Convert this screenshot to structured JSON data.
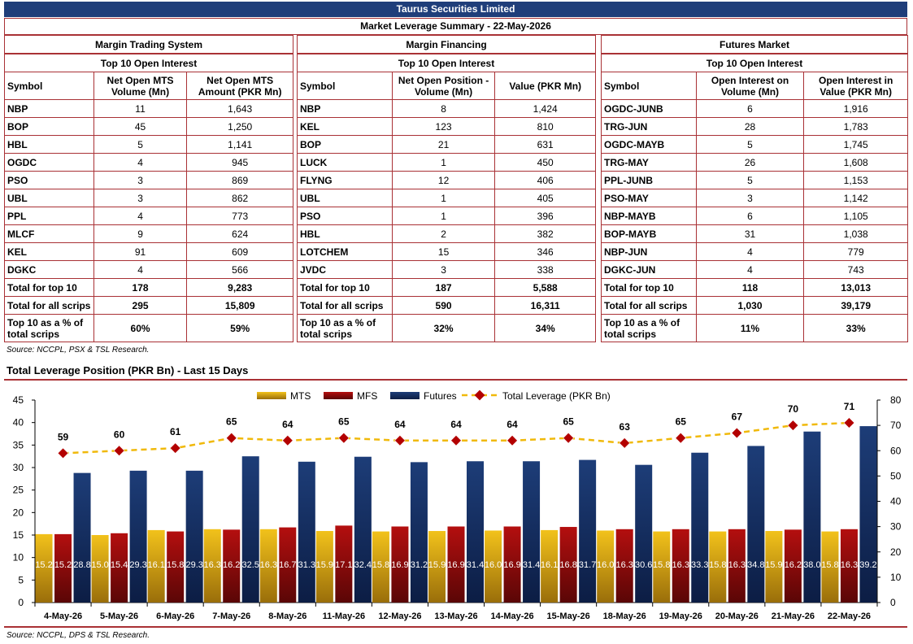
{
  "header": {
    "title": "Taurus Securities Limited",
    "subtitle": "Market Leverage Summary - 22-May-2026"
  },
  "panels": [
    {
      "title": "Margin Trading System",
      "subtitle": "Top 10 Open Interest",
      "columns": [
        "Symbol",
        "Net Open MTS Volume (Mn)",
        "Net Open MTS Amount (PKR Mn)"
      ],
      "rows": [
        [
          "NBP",
          "11",
          "1,643"
        ],
        [
          "BOP",
          "45",
          "1,250"
        ],
        [
          "HBL",
          "5",
          "1,141"
        ],
        [
          "OGDC",
          "4",
          "945"
        ],
        [
          "PSO",
          "3",
          "869"
        ],
        [
          "UBL",
          "3",
          "862"
        ],
        [
          "PPL",
          "4",
          "773"
        ],
        [
          "MLCF",
          "9",
          "624"
        ],
        [
          "KEL",
          "91",
          "609"
        ],
        [
          "DGKC",
          "4",
          "566"
        ]
      ],
      "totals": [
        [
          "Total for top 10",
          "178",
          "9,283"
        ],
        [
          "Total for all scrips",
          "295",
          "15,809"
        ],
        [
          "Top 10 as a % of total scrips",
          "60%",
          "59%"
        ]
      ]
    },
    {
      "title": "Margin Financing",
      "subtitle": "Top 10 Open Interest",
      "columns": [
        "Symbol",
        "Net Open Position - Volume (Mn)",
        "Value (PKR Mn)"
      ],
      "rows": [
        [
          "NBP",
          "8",
          "1,424"
        ],
        [
          "KEL",
          "123",
          "810"
        ],
        [
          "BOP",
          "21",
          "631"
        ],
        [
          "LUCK",
          "1",
          "450"
        ],
        [
          "FLYNG",
          "12",
          "406"
        ],
        [
          "UBL",
          "1",
          "405"
        ],
        [
          "PSO",
          "1",
          "396"
        ],
        [
          "HBL",
          "2",
          "382"
        ],
        [
          "LOTCHEM",
          "15",
          "346"
        ],
        [
          "JVDC",
          "3",
          "338"
        ]
      ],
      "totals": [
        [
          "Total for top 10",
          "187",
          "5,588"
        ],
        [
          "Total for all scrips",
          "590",
          "16,311"
        ],
        [
          "Top 10 as a % of total scrips",
          "32%",
          "34%"
        ]
      ]
    },
    {
      "title": "Futures Market",
      "subtitle": "Top 10 Open Interest",
      "columns": [
        "Symbol",
        "Open Interest on Volume (Mn)",
        "Open Interest in Value (PKR Mn)"
      ],
      "rows": [
        [
          "OGDC-JUNB",
          "6",
          "1,916"
        ],
        [
          "TRG-JUN",
          "28",
          "1,783"
        ],
        [
          "OGDC-MAYB",
          "5",
          "1,745"
        ],
        [
          "TRG-MAY",
          "26",
          "1,608"
        ],
        [
          "PPL-JUNB",
          "5",
          "1,153"
        ],
        [
          "PSO-MAY",
          "3",
          "1,142"
        ],
        [
          "NBP-MAYB",
          "6",
          "1,105"
        ],
        [
          "BOP-MAYB",
          "31",
          "1,038"
        ],
        [
          "NBP-JUN",
          "4",
          "779"
        ],
        [
          "DGKC-JUN",
          "4",
          "743"
        ]
      ],
      "totals": [
        [
          "Total for top 10",
          "118",
          "13,013"
        ],
        [
          "Total for all scrips",
          "1,030",
          "39,179"
        ],
        [
          "Top 10 as a % of total scrips",
          "11%",
          "33%"
        ]
      ]
    }
  ],
  "source_top": "Source: NCCPL, PSX & TSL Research.",
  "chart_title": "Total Leverage Position (PKR Bn) - Last 15 Days",
  "source_bottom": "Source: NCCPL, DPS & TSL Research.",
  "chart_data": {
    "type": "bar",
    "title": "Total Leverage Position (PKR Bn) - Last 15 Days",
    "categories": [
      "4-May-26",
      "5-May-26",
      "6-May-26",
      "7-May-26",
      "8-May-26",
      "11-May-26",
      "12-May-26",
      "13-May-26",
      "14-May-26",
      "15-May-26",
      "18-May-26",
      "19-May-26",
      "20-May-26",
      "21-May-26",
      "22-May-26"
    ],
    "series": [
      {
        "name": "MTS",
        "type": "bar",
        "axis": "left",
        "color": "#e8b800",
        "values": [
          15.2,
          15.0,
          16.1,
          16.3,
          16.3,
          15.9,
          15.8,
          15.9,
          16.0,
          16.1,
          16.0,
          15.8,
          15.8,
          15.9,
          15.8
        ]
      },
      {
        "name": "MFS",
        "type": "bar",
        "axis": "left",
        "color": "#a80f0f",
        "values": [
          15.2,
          15.4,
          15.8,
          16.2,
          16.7,
          17.1,
          16.9,
          16.9,
          16.9,
          16.8,
          16.3,
          16.3,
          16.3,
          16.2,
          16.3
        ]
      },
      {
        "name": "Futures",
        "type": "bar",
        "axis": "left",
        "color": "#13295b",
        "values": [
          28.8,
          29.3,
          29.3,
          32.5,
          31.3,
          32.4,
          31.2,
          31.4,
          31.4,
          31.7,
          30.6,
          33.3,
          34.8,
          38.0,
          39.2
        ]
      },
      {
        "name": "Total Leverage (PKR Bn)",
        "type": "line",
        "axis": "right",
        "color": "#f0b90b",
        "marker_color": "#b30000",
        "values": [
          59,
          60,
          61,
          65,
          64,
          65,
          64,
          64,
          64,
          65,
          63,
          65,
          67,
          70,
          71
        ]
      }
    ],
    "ylim_left": [
      0,
      45
    ],
    "yticks_left": [
      0,
      5,
      10,
      15,
      20,
      25,
      30,
      35,
      40,
      45
    ],
    "ylim_right": [
      0,
      80
    ],
    "yticks_right": [
      0,
      10,
      20,
      30,
      40,
      50,
      60,
      70,
      80
    ],
    "legend_position": "top"
  }
}
